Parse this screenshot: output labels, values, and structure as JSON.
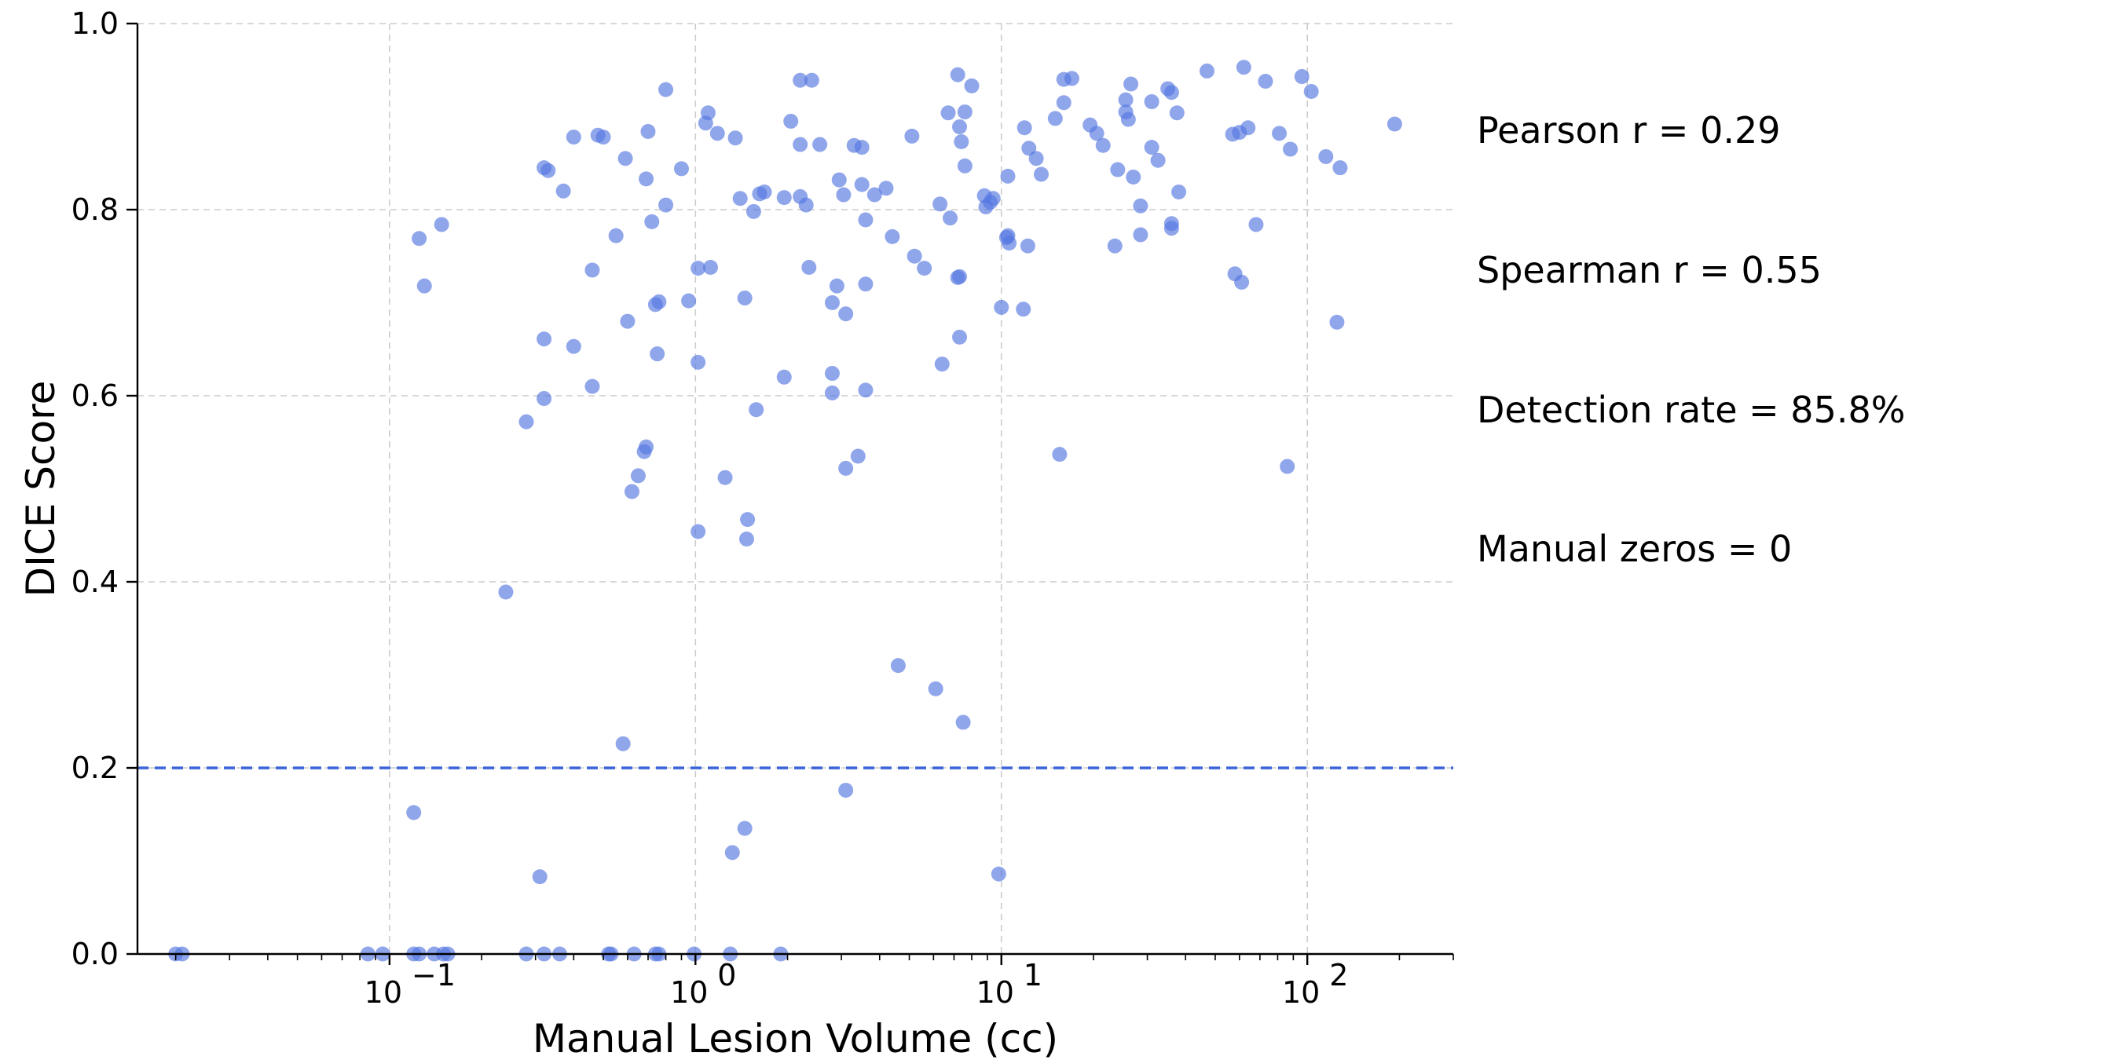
{
  "chart_data": {
    "type": "scatter",
    "xlabel": "Manual Lesion Volume (cc)",
    "ylabel": "DICE Score",
    "x_scale": "log",
    "xlim": [
      0.015,
      300
    ],
    "ylim": [
      0,
      1
    ],
    "x_ticks": [
      {
        "value": 0.1,
        "base": "10",
        "exp": "−1"
      },
      {
        "value": 1,
        "base": "10",
        "exp": "0"
      },
      {
        "value": 10,
        "base": "10",
        "exp": "1"
      },
      {
        "value": 100,
        "base": "10",
        "exp": "2"
      }
    ],
    "y_ticks": [
      "0.0",
      "0.2",
      "0.4",
      "0.6",
      "0.8",
      "1.0"
    ],
    "y_tick_values": [
      0,
      0.2,
      0.4,
      0.6,
      0.8,
      1.0
    ],
    "grid": true,
    "threshold_line": {
      "y": 0.2,
      "color": "#3b63d9",
      "style": "dashed"
    },
    "point_color": "#5577e0",
    "annotations": [
      "Pearson r = 0.29",
      "Spearman r = 0.55",
      "Detection rate = 85.8%",
      "Manual zeros = 0"
    ],
    "points": [
      {
        "x": 0.02,
        "y": 0
      },
      {
        "x": 0.021,
        "y": 0
      },
      {
        "x": 0.085,
        "y": 0
      },
      {
        "x": 0.095,
        "y": 0
      },
      {
        "x": 0.12,
        "y": 0
      },
      {
        "x": 0.125,
        "y": 0
      },
      {
        "x": 0.14,
        "y": 0
      },
      {
        "x": 0.15,
        "y": 0
      },
      {
        "x": 0.155,
        "y": 0
      },
      {
        "x": 0.28,
        "y": 0
      },
      {
        "x": 0.32,
        "y": 0
      },
      {
        "x": 0.36,
        "y": 0
      },
      {
        "x": 0.52,
        "y": 0
      },
      {
        "x": 0.53,
        "y": 0
      },
      {
        "x": 0.63,
        "y": 0
      },
      {
        "x": 0.74,
        "y": 0
      },
      {
        "x": 0.76,
        "y": 0
      },
      {
        "x": 0.99,
        "y": 0
      },
      {
        "x": 1.3,
        "y": 0
      },
      {
        "x": 1.9,
        "y": 0
      },
      {
        "x": 0.12,
        "y": 0.152
      },
      {
        "x": 0.31,
        "y": 0.083
      },
      {
        "x": 0.58,
        "y": 0.226
      },
      {
        "x": 1.32,
        "y": 0.109
      },
      {
        "x": 1.45,
        "y": 0.135
      },
      {
        "x": 3.1,
        "y": 0.176
      },
      {
        "x": 4.6,
        "y": 0.31
      },
      {
        "x": 6.1,
        "y": 0.285
      },
      {
        "x": 7.5,
        "y": 0.249
      },
      {
        "x": 9.8,
        "y": 0.086
      },
      {
        "x": 0.24,
        "y": 0.389
      },
      {
        "x": 1.02,
        "y": 0.454
      },
      {
        "x": 1.47,
        "y": 0.446
      },
      {
        "x": 1.48,
        "y": 0.467
      },
      {
        "x": 0.62,
        "y": 0.497
      },
      {
        "x": 1.25,
        "y": 0.512
      },
      {
        "x": 0.65,
        "y": 0.514
      },
      {
        "x": 3.1,
        "y": 0.522
      },
      {
        "x": 3.4,
        "y": 0.535
      },
      {
        "x": 0.68,
        "y": 0.54
      },
      {
        "x": 0.69,
        "y": 0.545
      },
      {
        "x": 15.5,
        "y": 0.537
      },
      {
        "x": 86,
        "y": 0.524
      },
      {
        "x": 0.28,
        "y": 0.572
      },
      {
        "x": 1.58,
        "y": 0.585
      },
      {
        "x": 0.32,
        "y": 0.597
      },
      {
        "x": 0.46,
        "y": 0.61
      },
      {
        "x": 2.8,
        "y": 0.603
      },
      {
        "x": 3.6,
        "y": 0.606
      },
      {
        "x": 1.95,
        "y": 0.62
      },
      {
        "x": 2.8,
        "y": 0.624
      },
      {
        "x": 6.4,
        "y": 0.634
      },
      {
        "x": 1.02,
        "y": 0.636
      },
      {
        "x": 0.75,
        "y": 0.645
      },
      {
        "x": 0.4,
        "y": 0.653
      },
      {
        "x": 0.32,
        "y": 0.661
      },
      {
        "x": 7.3,
        "y": 0.663
      },
      {
        "x": 125,
        "y": 0.679
      },
      {
        "x": 0.6,
        "y": 0.68
      },
      {
        "x": 3.1,
        "y": 0.688
      },
      {
        "x": 2.8,
        "y": 0.7
      },
      {
        "x": 11.8,
        "y": 0.693
      },
      {
        "x": 10,
        "y": 0.695
      },
      {
        "x": 0.74,
        "y": 0.698
      },
      {
        "x": 0.95,
        "y": 0.702
      },
      {
        "x": 0.76,
        "y": 0.701
      },
      {
        "x": 1.45,
        "y": 0.705
      },
      {
        "x": 0.13,
        "y": 0.718
      },
      {
        "x": 2.9,
        "y": 0.718
      },
      {
        "x": 3.6,
        "y": 0.72
      },
      {
        "x": 7.2,
        "y": 0.727
      },
      {
        "x": 7.3,
        "y": 0.728
      },
      {
        "x": 58,
        "y": 0.731
      },
      {
        "x": 61,
        "y": 0.722
      },
      {
        "x": 0.46,
        "y": 0.735
      },
      {
        "x": 1.02,
        "y": 0.737
      },
      {
        "x": 1.12,
        "y": 0.738
      },
      {
        "x": 2.35,
        "y": 0.738
      },
      {
        "x": 5.6,
        "y": 0.737
      },
      {
        "x": 5.2,
        "y": 0.75
      },
      {
        "x": 10.6,
        "y": 0.764
      },
      {
        "x": 10.4,
        "y": 0.77
      },
      {
        "x": 10.5,
        "y": 0.772
      },
      {
        "x": 12.2,
        "y": 0.761
      },
      {
        "x": 23.5,
        "y": 0.761
      },
      {
        "x": 0.125,
        "y": 0.769
      },
      {
        "x": 0.55,
        "y": 0.772
      },
      {
        "x": 4.4,
        "y": 0.771
      },
      {
        "x": 28.5,
        "y": 0.773
      },
      {
        "x": 36,
        "y": 0.78
      },
      {
        "x": 36,
        "y": 0.785
      },
      {
        "x": 68,
        "y": 0.784
      },
      {
        "x": 0.148,
        "y": 0.784
      },
      {
        "x": 0.72,
        "y": 0.787
      },
      {
        "x": 3.6,
        "y": 0.789
      },
      {
        "x": 6.8,
        "y": 0.791
      },
      {
        "x": 1.55,
        "y": 0.798
      },
      {
        "x": 0.8,
        "y": 0.805
      },
      {
        "x": 2.3,
        "y": 0.805
      },
      {
        "x": 6.3,
        "y": 0.806
      },
      {
        "x": 8.9,
        "y": 0.803
      },
      {
        "x": 9.2,
        "y": 0.808
      },
      {
        "x": 9.4,
        "y": 0.812
      },
      {
        "x": 8.8,
        "y": 0.815
      },
      {
        "x": 28.5,
        "y": 0.804
      },
      {
        "x": 1.4,
        "y": 0.812
      },
      {
        "x": 1.95,
        "y": 0.813
      },
      {
        "x": 2.2,
        "y": 0.814
      },
      {
        "x": 1.62,
        "y": 0.817
      },
      {
        "x": 1.68,
        "y": 0.819
      },
      {
        "x": 3.05,
        "y": 0.816
      },
      {
        "x": 3.85,
        "y": 0.816
      },
      {
        "x": 0.37,
        "y": 0.82
      },
      {
        "x": 4.2,
        "y": 0.823
      },
      {
        "x": 3.5,
        "y": 0.827
      },
      {
        "x": 2.95,
        "y": 0.832
      },
      {
        "x": 0.69,
        "y": 0.833
      },
      {
        "x": 10.5,
        "y": 0.836
      },
      {
        "x": 13.5,
        "y": 0.838
      },
      {
        "x": 27,
        "y": 0.835
      },
      {
        "x": 38,
        "y": 0.819
      },
      {
        "x": 0.32,
        "y": 0.845
      },
      {
        "x": 0.33,
        "y": 0.842
      },
      {
        "x": 0.9,
        "y": 0.844
      },
      {
        "x": 7.6,
        "y": 0.847
      },
      {
        "x": 24,
        "y": 0.843
      },
      {
        "x": 32.5,
        "y": 0.853
      },
      {
        "x": 13,
        "y": 0.855
      },
      {
        "x": 0.59,
        "y": 0.855
      },
      {
        "x": 115,
        "y": 0.857
      },
      {
        "x": 128,
        "y": 0.845
      },
      {
        "x": 12.3,
        "y": 0.866
      },
      {
        "x": 21.5,
        "y": 0.869
      },
      {
        "x": 31,
        "y": 0.867
      },
      {
        "x": 88,
        "y": 0.865
      },
      {
        "x": 2.2,
        "y": 0.87
      },
      {
        "x": 2.55,
        "y": 0.87
      },
      {
        "x": 3.3,
        "y": 0.869
      },
      {
        "x": 3.5,
        "y": 0.867
      },
      {
        "x": 7.4,
        "y": 0.873
      },
      {
        "x": 0.4,
        "y": 0.878
      },
      {
        "x": 0.48,
        "y": 0.88
      },
      {
        "x": 0.5,
        "y": 0.878
      },
      {
        "x": 1.18,
        "y": 0.882
      },
      {
        "x": 1.35,
        "y": 0.877
      },
      {
        "x": 5.1,
        "y": 0.879
      },
      {
        "x": 0.7,
        "y": 0.884
      },
      {
        "x": 20.5,
        "y": 0.882
      },
      {
        "x": 57,
        "y": 0.881
      },
      {
        "x": 60,
        "y": 0.883
      },
      {
        "x": 64,
        "y": 0.888
      },
      {
        "x": 81,
        "y": 0.882
      },
      {
        "x": 11.9,
        "y": 0.888
      },
      {
        "x": 7.3,
        "y": 0.889
      },
      {
        "x": 19.5,
        "y": 0.891
      },
      {
        "x": 193,
        "y": 0.892
      },
      {
        "x": 1.08,
        "y": 0.893
      },
      {
        "x": 2.05,
        "y": 0.895
      },
      {
        "x": 26,
        "y": 0.897
      },
      {
        "x": 15,
        "y": 0.898
      },
      {
        "x": 1.1,
        "y": 0.904
      },
      {
        "x": 6.7,
        "y": 0.904
      },
      {
        "x": 7.6,
        "y": 0.905
      },
      {
        "x": 25.5,
        "y": 0.905
      },
      {
        "x": 37.5,
        "y": 0.904
      },
      {
        "x": 16,
        "y": 0.915
      },
      {
        "x": 25.5,
        "y": 0.918
      },
      {
        "x": 31,
        "y": 0.916
      },
      {
        "x": 103,
        "y": 0.927
      },
      {
        "x": 36,
        "y": 0.926
      },
      {
        "x": 0.8,
        "y": 0.929
      },
      {
        "x": 35,
        "y": 0.93
      },
      {
        "x": 26.5,
        "y": 0.935
      },
      {
        "x": 8,
        "y": 0.933
      },
      {
        "x": 73,
        "y": 0.938
      },
      {
        "x": 2.2,
        "y": 0.939
      },
      {
        "x": 2.4,
        "y": 0.939
      },
      {
        "x": 16,
        "y": 0.94
      },
      {
        "x": 17,
        "y": 0.941
      },
      {
        "x": 96,
        "y": 0.943
      },
      {
        "x": 7.2,
        "y": 0.945
      },
      {
        "x": 47,
        "y": 0.949
      },
      {
        "x": 62,
        "y": 0.953
      }
    ]
  }
}
